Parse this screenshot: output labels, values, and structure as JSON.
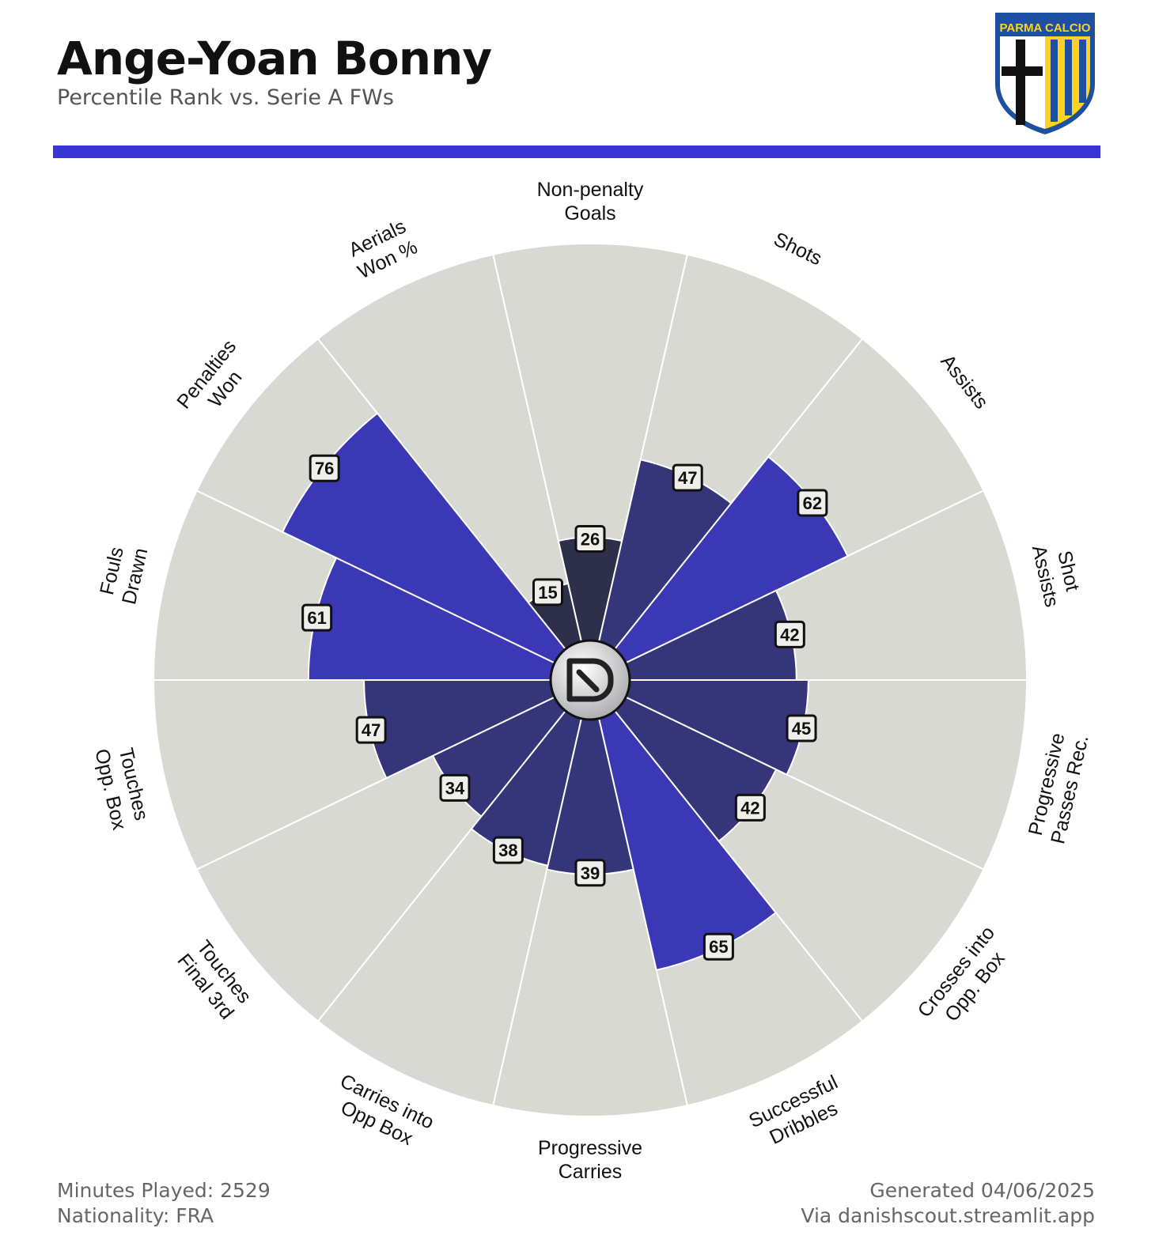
{
  "header": {
    "title": "Ange-Yoan Bonny",
    "subtitle": "Percentile Rank vs. Serie A FWs",
    "crest_text": "PARMA CALCIO"
  },
  "footer": {
    "minutes": "Minutes Played: 2529",
    "nationality": "Nationality: FRA",
    "generated": "Generated 04/06/2025",
    "source": "Via danishscout.streamlit.app"
  },
  "colors": {
    "accent": "#3a35d0",
    "background_wedge": "#d8d9d3",
    "bar_dark": "#2e2f4a",
    "bar_mid": "#35357a",
    "bar_bright": "#3a38b4"
  },
  "chart_data": {
    "type": "polar-bar",
    "rmax": 100,
    "categories": [
      "Non-penalty Goals",
      "Shots",
      "Assists",
      "Shot Assists",
      "Progressive Passes Rec.",
      "Crosses into Opp. Box",
      "Successful Dribbles",
      "Progressive Carries",
      "Carries into Opp Box",
      "Touches Final 3rd",
      "Touches Opp. Box",
      "Fouls Drawn",
      "Penalties Won",
      "Aerials Won %"
    ],
    "label_lines": [
      [
        "Non-penalty",
        "Goals"
      ],
      [
        "Shots"
      ],
      [
        "Assists"
      ],
      [
        "Shot",
        "Assists"
      ],
      [
        "Progressive",
        "Passes Rec."
      ],
      [
        "Crosses into",
        "Opp. Box"
      ],
      [
        "Successful",
        "Dribbles"
      ],
      [
        "Progressive",
        "Carries"
      ],
      [
        "Carries into",
        "Opp Box"
      ],
      [
        "Touches",
        "Final 3rd"
      ],
      [
        "Touches",
        "Opp. Box"
      ],
      [
        "Fouls",
        "Drawn"
      ],
      [
        "Penalties",
        "Won"
      ],
      [
        "Aerials",
        "Won %"
      ]
    ],
    "values": [
      26,
      47,
      62,
      42,
      45,
      42,
      65,
      39,
      38,
      34,
      47,
      61,
      76,
      15
    ]
  }
}
